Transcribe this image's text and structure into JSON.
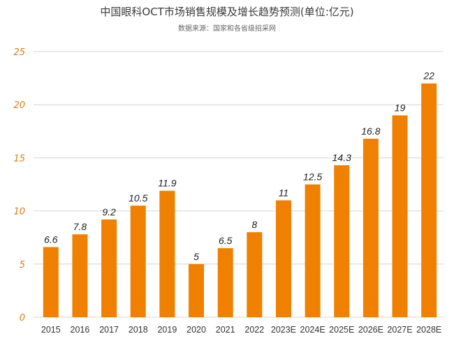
{
  "chart_data": {
    "type": "bar",
    "title": "中国眼科OCT市场销售规模及增长趋势预测(单位:亿元)",
    "subtitle": "数据来源：国家和各省级招采网",
    "categories": [
      "2015",
      "2016",
      "2017",
      "2018",
      "2019",
      "2020",
      "2021",
      "2022",
      "2023E",
      "2024E",
      "2025E",
      "2026E",
      "2027E",
      "2028E"
    ],
    "values": [
      6.6,
      7.8,
      9.2,
      10.5,
      11.9,
      5,
      6.5,
      8,
      11,
      12.5,
      14.3,
      16.8,
      19,
      22
    ],
    "data_labels": [
      "6.6",
      "7.8",
      "9.2",
      "10.5",
      "11.9",
      "5",
      "6.5",
      "8",
      "11",
      "12.5",
      "14.3",
      "16.8",
      "19",
      "22"
    ],
    "yticks": [
      "0",
      "5",
      "10",
      "15",
      "20",
      "25"
    ],
    "ylim": [
      0,
      25
    ],
    "grid": true,
    "colors": {
      "bar": "#f08000",
      "ytick": "#e07c12",
      "grid": "#d4d4d4"
    }
  }
}
